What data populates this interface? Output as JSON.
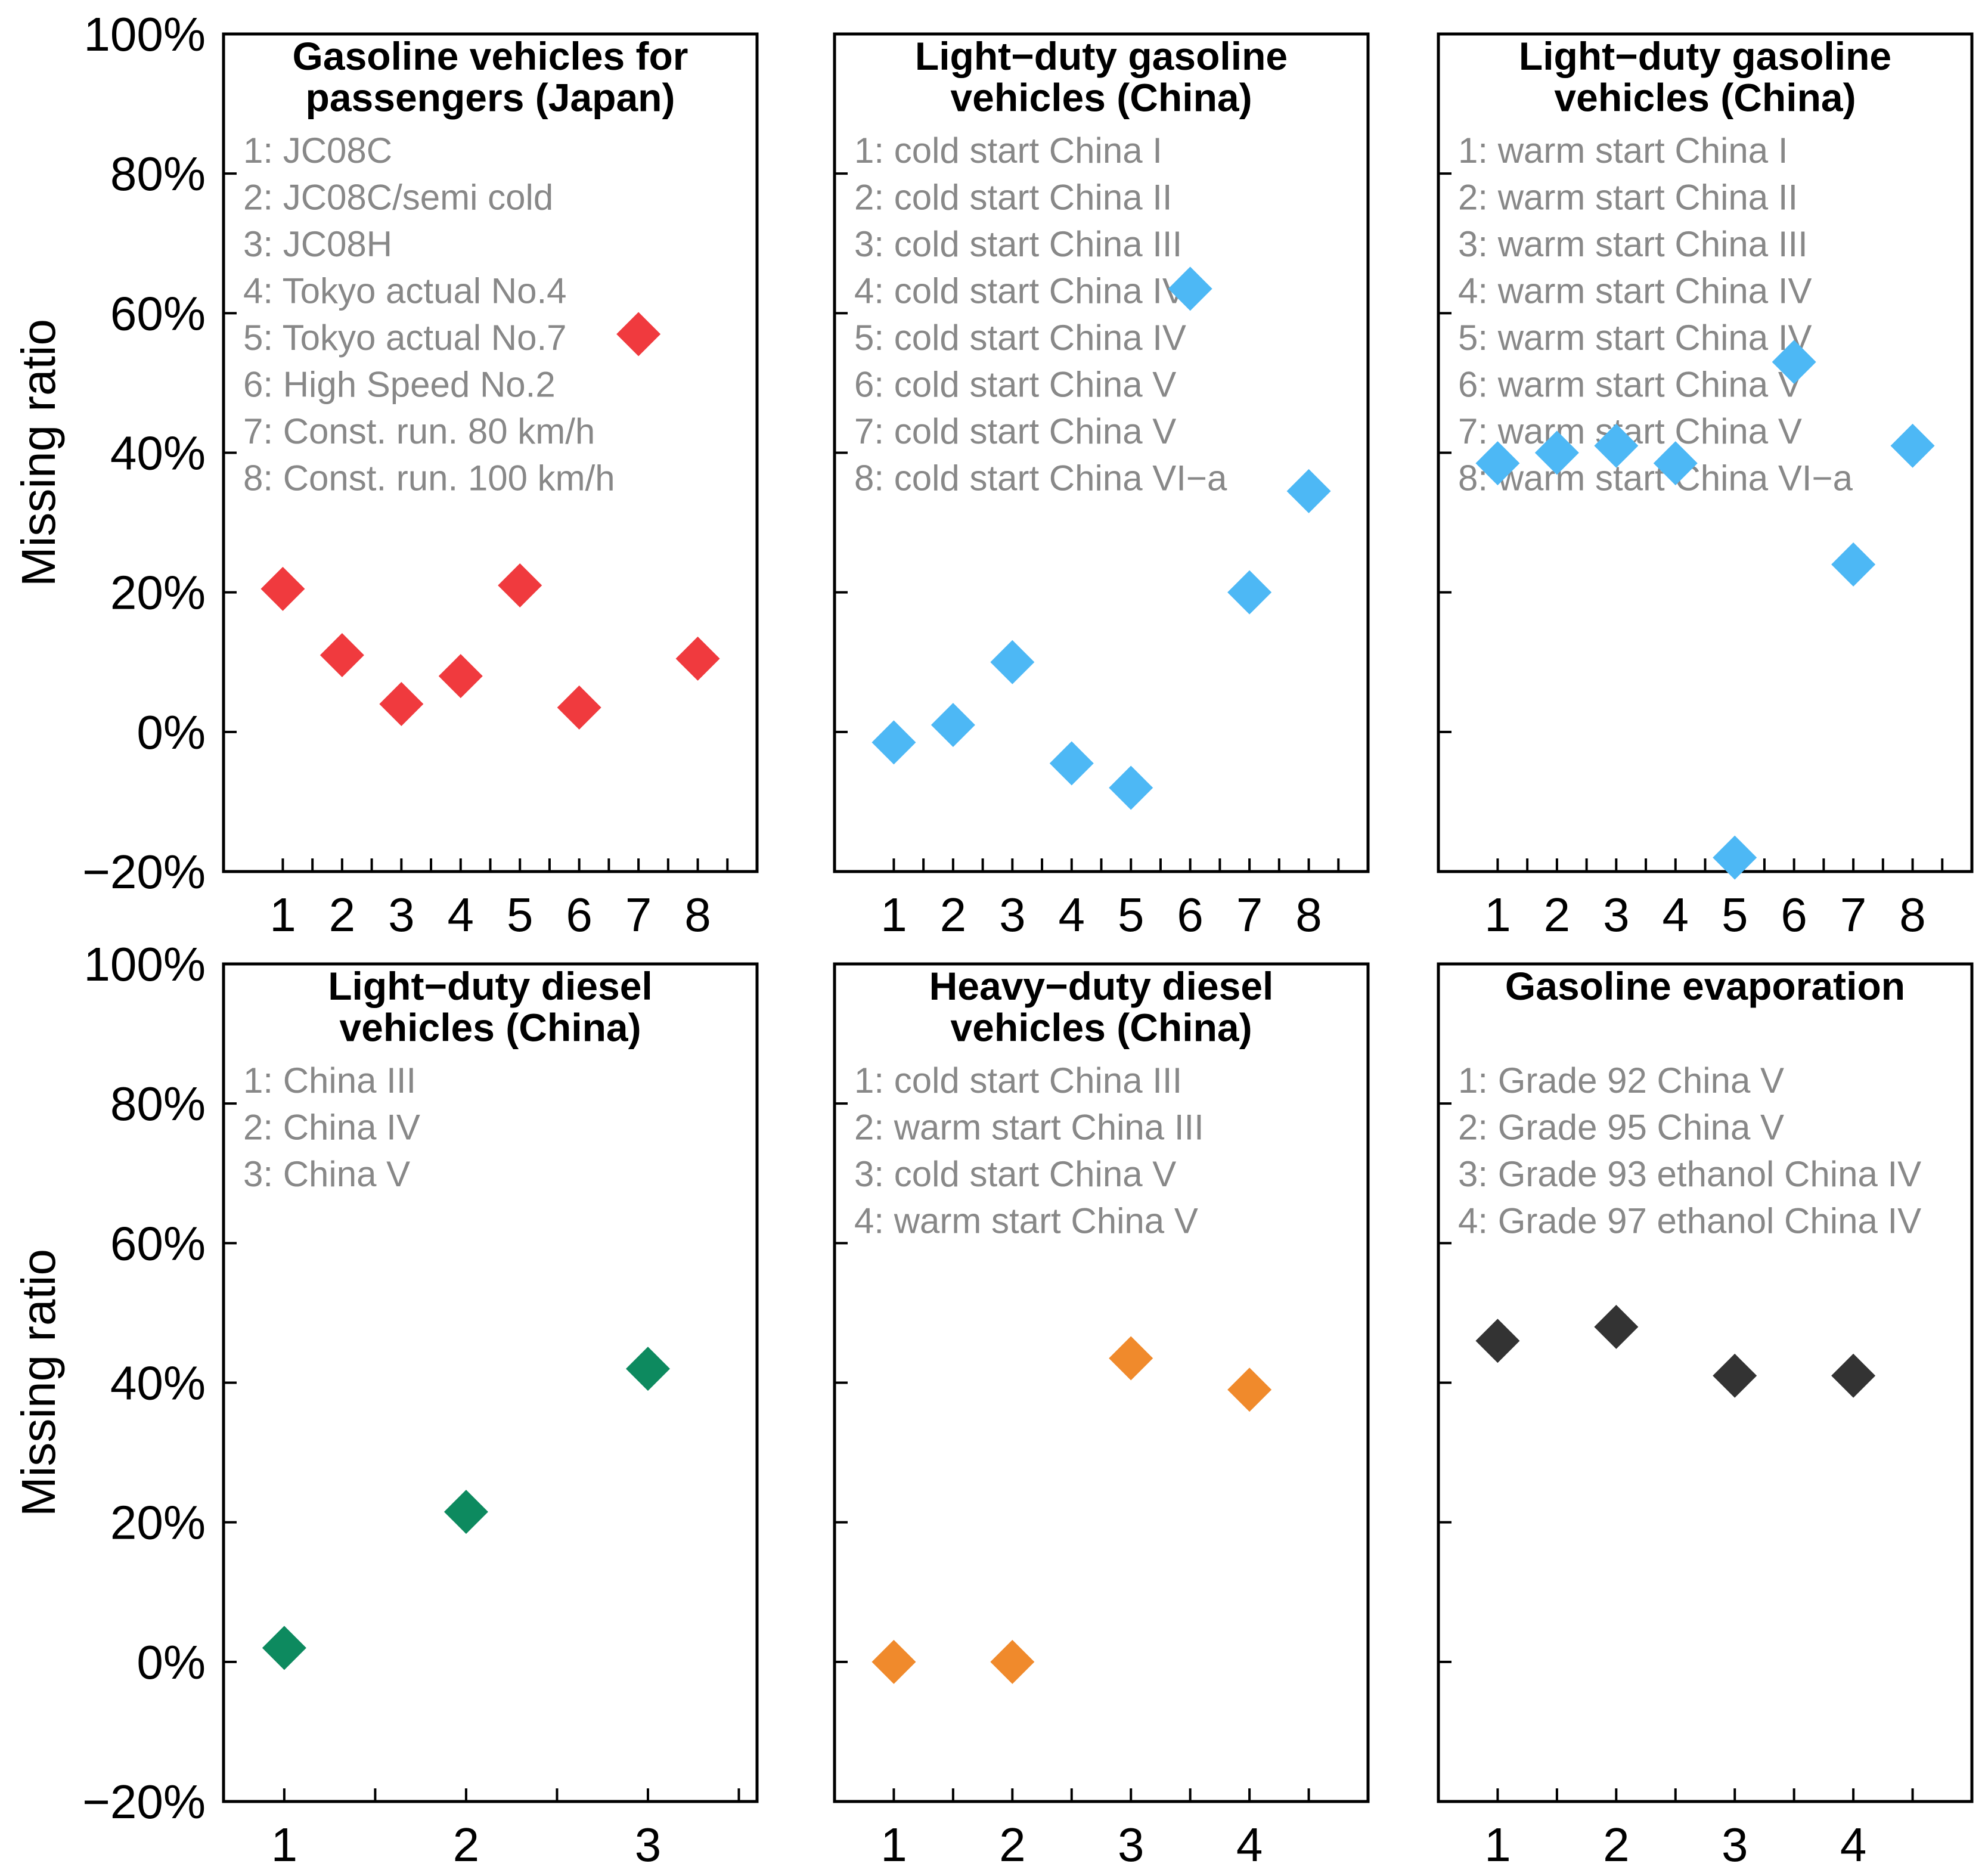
{
  "chart_data": [
    {
      "type": "scatter",
      "title_lines": [
        "Gasoline vehicles for",
        "passengers (Japan)"
      ],
      "ylabel": "Missing ratio",
      "ylim": [
        -20,
        100
      ],
      "yticks": [
        "100%",
        "80%",
        "60%",
        "40%",
        "20%",
        "0%",
        "−20%"
      ],
      "ytick_values": [
        100,
        80,
        60,
        40,
        20,
        0,
        -20
      ],
      "x": [
        1,
        2,
        3,
        4,
        5,
        6,
        7,
        8
      ],
      "values": [
        20.5,
        11,
        4,
        8,
        21,
        3.5,
        57,
        10.5
      ],
      "xlim": [
        0,
        9
      ],
      "legend": [
        "1: JC08C",
        "2: JC08C/semi cold",
        "3: JC08H",
        "4: Tokyo actual No.4",
        "5: Tokyo actual No.7",
        "6: High Speed No.2",
        "7: Const. run. 80 km/h",
        "8: Const. run. 100 km/h"
      ],
      "color": "#f03a3e"
    },
    {
      "type": "scatter",
      "title_lines": [
        "Light−duty gasoline",
        "vehicles (China)"
      ],
      "ylabel": "",
      "ylim": [
        -20,
        100
      ],
      "ytick_values": [
        100,
        80,
        60,
        40,
        20,
        0,
        -20
      ],
      "x": [
        1,
        2,
        3,
        4,
        5,
        6,
        7,
        8
      ],
      "values": [
        -1.5,
        1,
        10,
        -4.5,
        -8,
        63.5,
        20,
        34.5
      ],
      "xlim": [
        0,
        9
      ],
      "legend": [
        "1: cold start China I",
        "2: cold start China II",
        "3: cold start China III",
        "4: cold start China IV",
        "5: cold start China IV",
        "6: cold start China V",
        "7: cold start China V",
        "8: cold start China VI−a"
      ],
      "color": "#4db8f5"
    },
    {
      "type": "scatter",
      "title_lines": [
        "Light−duty gasoline",
        "vehicles (China)"
      ],
      "ylabel": "",
      "ylim": [
        -20,
        100
      ],
      "ytick_values": [
        100,
        80,
        60,
        40,
        20,
        0,
        -20
      ],
      "x": [
        1,
        2,
        3,
        4,
        5,
        6,
        7,
        8
      ],
      "values": [
        38.5,
        40,
        41,
        38.5,
        -18,
        53,
        24,
        41
      ],
      "xlim": [
        0,
        9
      ],
      "legend": [
        "1: warm start China I",
        "2: warm start China II",
        "3: warm start China III",
        "4: warm start China IV",
        "5: warm start China IV",
        "6: warm start China V",
        "7: warm start China V",
        "8: warm start China VI−a"
      ],
      "color": "#4db8f5"
    },
    {
      "type": "scatter",
      "title_lines": [
        "Light−duty diesel",
        "vehicles (China)"
      ],
      "ylabel": "Missing ratio",
      "ylim": [
        -20,
        100
      ],
      "yticks": [
        "100%",
        "80%",
        "60%",
        "40%",
        "20%",
        "0%",
        "−20%"
      ],
      "ytick_values": [
        100,
        80,
        60,
        40,
        20,
        0,
        -20
      ],
      "x": [
        1,
        2,
        3
      ],
      "values": [
        2,
        21.5,
        42
      ],
      "xlim": [
        0.666,
        3.6
      ],
      "legend": [
        "1: China III",
        "2: China IV",
        "3: China V"
      ],
      "color": "#0d8a5f"
    },
    {
      "type": "scatter",
      "title_lines": [
        "Heavy−duty diesel",
        "vehicles (China)"
      ],
      "ylabel": "",
      "ylim": [
        -20,
        100
      ],
      "ytick_values": [
        100,
        80,
        60,
        40,
        20,
        0,
        -20
      ],
      "x": [
        1,
        2,
        3,
        4
      ],
      "values": [
        0,
        0,
        43.5,
        39
      ],
      "xlim": [
        0.5,
        5
      ],
      "legend": [
        "1: cold start China III",
        "2: warm start China III",
        "3: cold start China V",
        "4: warm start China V"
      ],
      "color": "#f08a2c"
    },
    {
      "type": "scatter",
      "title_lines": [
        "Gasoline evaporation"
      ],
      "ylabel": "",
      "ylim": [
        -20,
        100
      ],
      "ytick_values": [
        100,
        80,
        60,
        40,
        20,
        0,
        -20
      ],
      "x": [
        1,
        2,
        3,
        4
      ],
      "values": [
        46,
        48,
        41,
        41
      ],
      "xlim": [
        0.5,
        5
      ],
      "legend": [
        "1: Grade 92 China V",
        "2: Grade 95 China V",
        "3: Grade 93 ethanol China IV",
        "4: Grade 97 ethanol China IV"
      ],
      "color": "#333333"
    }
  ]
}
